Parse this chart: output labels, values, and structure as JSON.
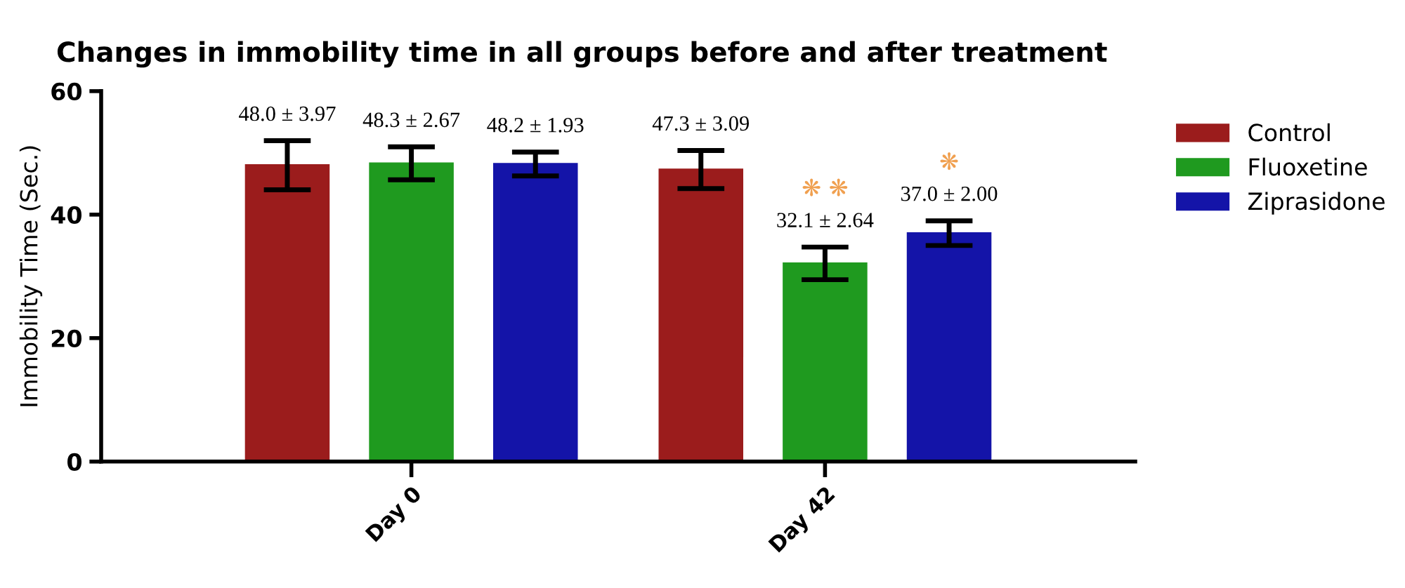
{
  "chart_data": {
    "type": "bar",
    "title": "Changes in immobility time in all groups before and after treatment",
    "ylabel": "Immobility Time (Sec.)",
    "categories": [
      "Day 0",
      "Day 42"
    ],
    "series": [
      {
        "name": "Control",
        "color": "#9b1c1c",
        "values": [
          48.0,
          47.3
        ],
        "errors": [
          3.97,
          3.09
        ],
        "value_labels": [
          "48.0 ± 3.97",
          "47.3 ± 3.09"
        ]
      },
      {
        "name": "Fluoxetine",
        "color": "#1f9a1f",
        "values": [
          48.3,
          32.1
        ],
        "errors": [
          2.67,
          2.64
        ],
        "value_labels": [
          "48.3 ± 2.67",
          "32.1 ± 2.64"
        ]
      },
      {
        "name": "Ziprasidone",
        "color": "#1414a8",
        "values": [
          48.2,
          37.0
        ],
        "errors": [
          1.93,
          2.0
        ],
        "value_labels": [
          "48.2 ± 1.93",
          "37.0 ± 2.00"
        ]
      }
    ],
    "annotations": [
      "❋ ❋",
      "❋"
    ],
    "ylim": [
      0,
      60
    ],
    "yticks": [
      0,
      20,
      40,
      60
    ],
    "grid": false,
    "legend": "right"
  }
}
